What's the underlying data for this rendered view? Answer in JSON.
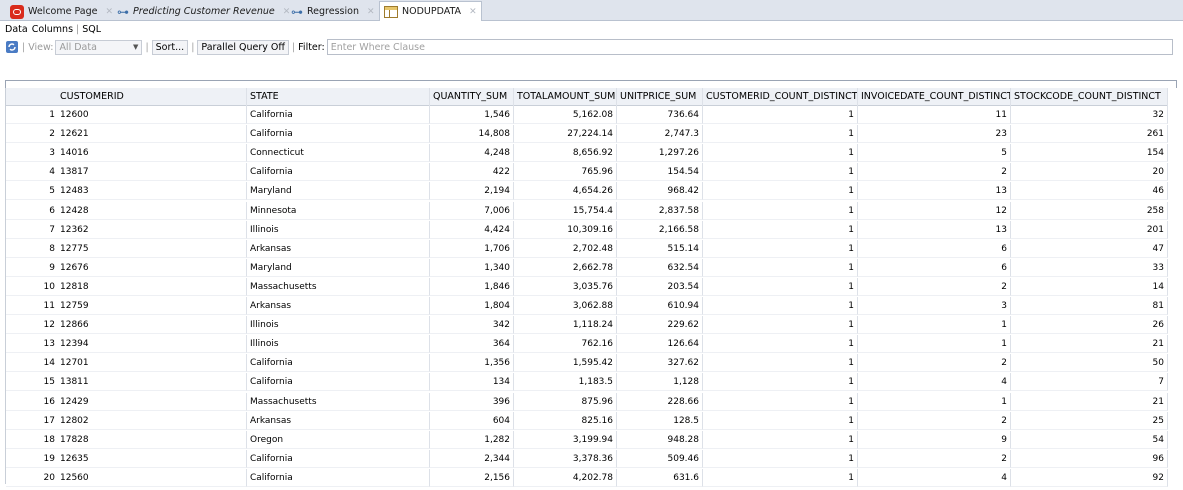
{
  "tabs": [
    {
      "label": "Welcome Page",
      "icon": "oracle-icon",
      "italic": false,
      "active": false
    },
    {
      "label": "Predicting Customer Revenue",
      "icon": "workflow-icon",
      "italic": true,
      "active": false
    },
    {
      "label": "Regression",
      "icon": "workflow-icon",
      "italic": false,
      "active": false
    },
    {
      "label": "NODUPDATA",
      "icon": "table-icon",
      "italic": false,
      "active": true
    }
  ],
  "subtabs": [
    "Data",
    "Columns",
    "SQL"
  ],
  "toolbar": {
    "view_label": "View:",
    "view_value": "All Data",
    "sort_label": "Sort...",
    "parallel_label": "Parallel Query Off",
    "filter_label": "Filter:",
    "filter_placeholder": "Enter Where Clause"
  },
  "table": {
    "columns": [
      "CUSTOMERID",
      "STATE",
      "QUANTITY_SUM",
      "TOTALAMOUNT_SUM",
      "UNITPRICE_SUM",
      "CUSTOMERID_COUNT_DISTINCT",
      "INVOICEDATE_COUNT_DISTINCT",
      "STOCKCODE_COUNT_DISTINCT"
    ],
    "rows": [
      [
        "1",
        "12600",
        "California",
        "1,546",
        "5,162.08",
        "736.64",
        "1",
        "11",
        "32"
      ],
      [
        "2",
        "12621",
        "California",
        "14,808",
        "27,224.14",
        "2,747.3",
        "1",
        "23",
        "261"
      ],
      [
        "3",
        "14016",
        "Connecticut",
        "4,248",
        "8,656.92",
        "1,297.26",
        "1",
        "5",
        "154"
      ],
      [
        "4",
        "13817",
        "California",
        "422",
        "765.96",
        "154.54",
        "1",
        "2",
        "20"
      ],
      [
        "5",
        "12483",
        "Maryland",
        "2,194",
        "4,654.26",
        "968.42",
        "1",
        "13",
        "46"
      ],
      [
        "6",
        "12428",
        "Minnesota",
        "7,006",
        "15,754.4",
        "2,837.58",
        "1",
        "12",
        "258"
      ],
      [
        "7",
        "12362",
        "Illinois",
        "4,424",
        "10,309.16",
        "2,166.58",
        "1",
        "13",
        "201"
      ],
      [
        "8",
        "12775",
        "Arkansas",
        "1,706",
        "2,702.48",
        "515.14",
        "1",
        "6",
        "47"
      ],
      [
        "9",
        "12676",
        "Maryland",
        "1,340",
        "2,662.78",
        "632.54",
        "1",
        "6",
        "33"
      ],
      [
        "10",
        "12818",
        "Massachusetts",
        "1,846",
        "3,035.76",
        "203.54",
        "1",
        "2",
        "14"
      ],
      [
        "11",
        "12759",
        "Arkansas",
        "1,804",
        "3,062.88",
        "610.94",
        "1",
        "3",
        "81"
      ],
      [
        "12",
        "12866",
        "Illinois",
        "342",
        "1,118.24",
        "229.62",
        "1",
        "1",
        "26"
      ],
      [
        "13",
        "12394",
        "Illinois",
        "364",
        "762.16",
        "126.64",
        "1",
        "1",
        "21"
      ],
      [
        "14",
        "12701",
        "California",
        "1,356",
        "1,595.42",
        "327.62",
        "1",
        "2",
        "50"
      ],
      [
        "15",
        "13811",
        "California",
        "134",
        "1,183.5",
        "1,128",
        "1",
        "4",
        "7"
      ],
      [
        "16",
        "12429",
        "Massachusetts",
        "396",
        "875.96",
        "228.66",
        "1",
        "1",
        "21"
      ],
      [
        "17",
        "12802",
        "Arkansas",
        "604",
        "825.16",
        "128.5",
        "1",
        "2",
        "25"
      ],
      [
        "18",
        "17828",
        "Oregon",
        "1,282",
        "3,199.94",
        "948.28",
        "1",
        "9",
        "54"
      ],
      [
        "19",
        "12635",
        "California",
        "2,344",
        "3,378.36",
        "509.46",
        "1",
        "2",
        "96"
      ],
      [
        "20",
        "12560",
        "California",
        "2,156",
        "4,202.78",
        "631.6",
        "1",
        "4",
        "92"
      ]
    ]
  }
}
